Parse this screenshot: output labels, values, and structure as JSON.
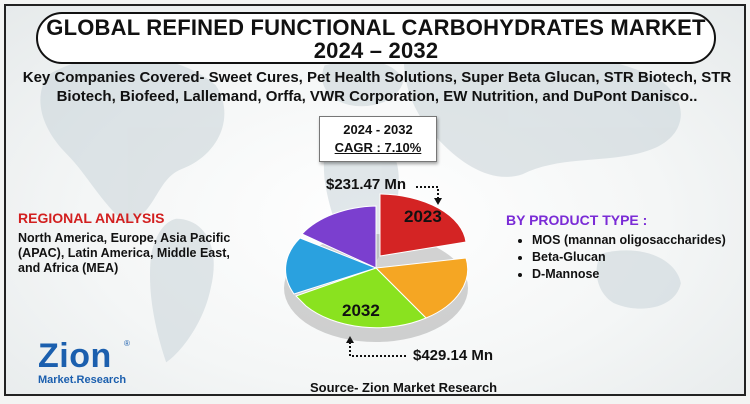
{
  "title": {
    "line1": "GLOBAL REFINED FUNCTIONAL CARBOHYDRATES MARKET",
    "line2": "2024 – 2032"
  },
  "companies_text": "Key Companies Covered- Sweet Cures, Pet Health Solutions, Super Beta Glucan, STR Biotech, STR Biotech, Biofeed, Lallemand, Orffa, VWR Corporation, EW Nutrition, and DuPont Danisco..",
  "cagr": {
    "years": "2024 - 2032",
    "value": "CAGR : 7.10%"
  },
  "value_2023": "$231.47 Mn",
  "value_2032": "$429.14 Mn",
  "pie": {
    "label_2023": "2023",
    "label_2032": "2032",
    "colors": {
      "red": "#d42424",
      "orange": "#f5a623",
      "green": "#8ae21f",
      "blue": "#2aa1df",
      "purple": "#7b3fcf"
    }
  },
  "regional": {
    "heading": "REGIONAL ANALYSIS",
    "text": "North America, Europe, Asia Pacific (APAC), Latin America, Middle East, and Africa (MEA)"
  },
  "product": {
    "heading": "BY PRODUCT TYPE :",
    "items": [
      "MOS (mannan oligosaccharides)",
      "Beta-Glucan",
      "D-Mannose"
    ]
  },
  "source": "Source- Zion Market Research",
  "logo": {
    "main": "Zion",
    "sub": "Market.Research",
    "reg": "®"
  }
}
